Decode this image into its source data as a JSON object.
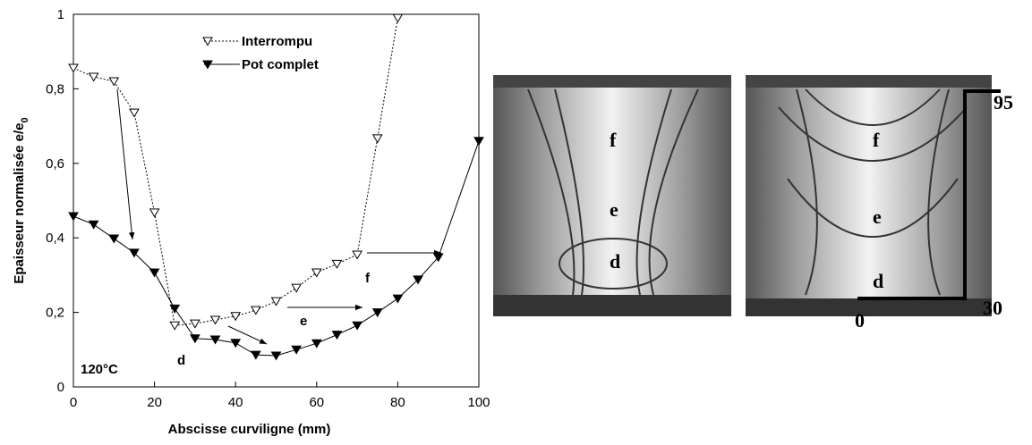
{
  "chart_data": {
    "type": "line",
    "x_label": "Abscisse curviligne (mm)",
    "y_label": "Epaisseur normalisée e/e",
    "y_label_sub": "0",
    "xlim": [
      0,
      100
    ],
    "xticks": [
      0,
      20,
      40,
      60,
      80,
      100
    ],
    "ylim": [
      0,
      1
    ],
    "yticks": [
      0,
      {
        "value": 0.2,
        "label": "0,2"
      },
      {
        "value": 0.4,
        "label": "0,4"
      },
      {
        "value": 0.6,
        "label": "0,6"
      },
      {
        "value": 0.8,
        "label": "0,8"
      },
      1
    ],
    "series": [
      {
        "name": "Interrompu",
        "color": "#000000",
        "dash": "dotted",
        "marker": "open",
        "x": [
          0,
          5,
          10,
          15,
          20,
          25,
          30,
          35,
          40,
          45,
          50,
          55,
          60,
          65,
          70,
          75,
          80
        ],
        "values": [
          0.856,
          0.832,
          0.82,
          0.736,
          0.468,
          0.165,
          0.17,
          0.18,
          0.19,
          0.206,
          0.23,
          0.266,
          0.307,
          0.33,
          0.355,
          0.667,
          0.99
        ]
      },
      {
        "name": "Pot complet",
        "color": "#000000",
        "dash": "solid",
        "marker": "filled",
        "x": [
          0,
          5,
          10,
          15,
          20,
          25,
          30,
          35,
          40,
          45,
          50,
          55,
          60,
          65,
          70,
          75,
          80,
          85,
          90,
          100
        ],
        "values": [
          0.458,
          0.436,
          0.398,
          0.36,
          0.307,
          0.21,
          0.13,
          0.127,
          0.118,
          0.086,
          0.084,
          0.1,
          0.117,
          0.14,
          0.165,
          0.2,
          0.237,
          0.288,
          0.348,
          0.66
        ]
      }
    ],
    "annotations": [
      "120°C",
      "d",
      "e",
      "f"
    ]
  },
  "photos": [
    {
      "labels": [
        "f",
        "e",
        "d"
      ]
    },
    {
      "labels": [
        "f",
        "e",
        "d",
        "0",
        "30",
        "95"
      ]
    }
  ]
}
